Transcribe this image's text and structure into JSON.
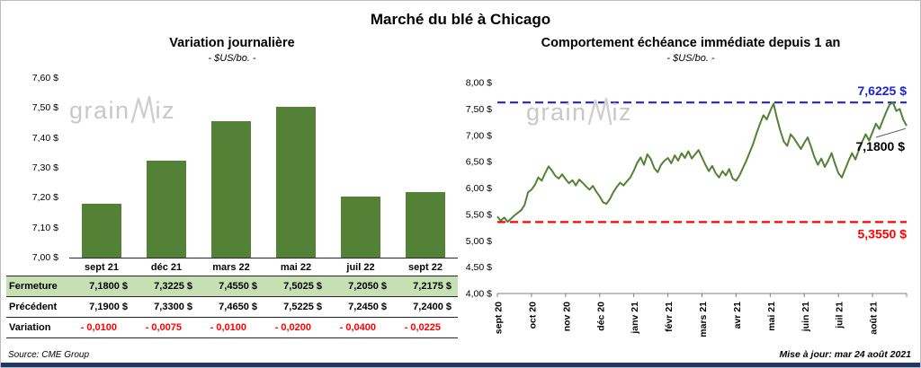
{
  "page": {
    "title": "Marché du blé à Chicago",
    "source_note": "Source: CME Group",
    "update_note": "Mise à jour: mar 24 août 2021"
  },
  "watermark": {
    "full": "grainwiz",
    "before_w": "grain",
    "after_w": "iz"
  },
  "colors": {
    "bar_green": "#538135",
    "line_green": "#538135",
    "fermeture_row_bg": "#C6E0B4",
    "negative_red": "#FF0000",
    "high_line_blue": "#2323CC",
    "low_line_red": "#FF0000",
    "bottom_bar_navy": "#1F3864"
  },
  "table": {
    "columns": [
      "sept 21",
      "déc 21",
      "mars 22",
      "mai 22",
      "juil 22",
      "sept 22"
    ],
    "rows": [
      {
        "label": "Fermeture",
        "values": [
          "7,1800 $",
          "7,3225 $",
          "7,4550 $",
          "7,5025 $",
          "7,2050 $",
          "7,2175 $"
        ]
      },
      {
        "label": "Précédent",
        "values": [
          "7,1900 $",
          "7,3300 $",
          "7,4650 $",
          "7,5225 $",
          "7,2450 $",
          "7,2400 $"
        ]
      },
      {
        "label": "Variation",
        "values": [
          "- 0,0100",
          "- 0,0075",
          "- 0,0100",
          "- 0,0200",
          "- 0,0400",
          "- 0,0225"
        ]
      }
    ]
  },
  "chart_data": [
    {
      "type": "bar",
      "title": "Variation journalière",
      "subtitle": "- $US/bo. -",
      "categories": [
        "sept 21",
        "déc 21",
        "mars 22",
        "mai 22",
        "juil 22",
        "sept 22"
      ],
      "values": [
        7.18,
        7.3225,
        7.455,
        7.5025,
        7.205,
        7.2175
      ],
      "ylim": [
        7.0,
        7.6
      ],
      "ytick_step": 0.1,
      "yticklabels": [
        "7,60 $",
        "7,50 $",
        "7,40 $",
        "7,30 $",
        "7,20 $",
        "7,10 $",
        "7,00 $"
      ],
      "grid": false,
      "bar_color": "#538135"
    },
    {
      "type": "line",
      "title": "Comportement échéance immédiate depuis 1 an",
      "subtitle": "- $US/bo. -",
      "x_labels": [
        "sept 20",
        "oct 20",
        "nov 20",
        "déc 20",
        "janv 21",
        "févr 21",
        "mars 21",
        "avr 21",
        "mai 21",
        "juin 21",
        "juil 21",
        "août 21"
      ],
      "values": [
        5.46,
        5.38,
        5.44,
        5.36,
        5.42,
        5.48,
        5.53,
        5.58,
        5.68,
        5.92,
        5.97,
        6.06,
        6.2,
        6.14,
        6.28,
        6.41,
        6.33,
        6.23,
        6.18,
        6.26,
        6.17,
        6.09,
        6.15,
        6.05,
        6.16,
        6.1,
        6.03,
        5.97,
        6.04,
        5.93,
        5.84,
        5.73,
        5.7,
        5.79,
        5.92,
        6.02,
        6.1,
        6.05,
        6.13,
        6.2,
        6.33,
        6.48,
        6.58,
        6.44,
        6.64,
        6.55,
        6.38,
        6.3,
        6.44,
        6.52,
        6.57,
        6.47,
        6.62,
        6.52,
        6.66,
        6.57,
        6.7,
        6.56,
        6.64,
        6.72,
        6.58,
        6.44,
        6.32,
        6.42,
        6.28,
        6.2,
        6.32,
        6.24,
        6.36,
        6.18,
        6.14,
        6.24,
        6.38,
        6.52,
        6.68,
        6.84,
        7.04,
        7.22,
        7.38,
        7.3,
        7.46,
        7.6,
        7.32,
        7.08,
        6.88,
        6.8,
        7.02,
        6.94,
        6.84,
        6.74,
        6.86,
        6.96,
        6.78,
        6.58,
        6.44,
        6.56,
        6.4,
        6.52,
        6.66,
        6.46,
        6.28,
        6.2,
        6.36,
        6.52,
        6.66,
        6.54,
        6.72,
        6.88,
        7.02,
        6.9,
        7.06,
        7.22,
        7.12,
        7.28,
        7.44,
        7.58,
        7.6225,
        7.46,
        7.5,
        7.3,
        7.18
      ],
      "ylim": [
        4.0,
        8.0
      ],
      "ytick_step": 0.5,
      "yticklabels": [
        "8,00 $",
        "7,50 $",
        "7,00 $",
        "6,50 $",
        "6,00 $",
        "5,50 $",
        "5,00 $",
        "4,50 $",
        "4,00 $"
      ],
      "line_color": "#538135",
      "high_line": {
        "value": 7.6225,
        "label": "7,6225 $",
        "color": "#2323CC"
      },
      "low_line": {
        "value": 5.355,
        "label": "5,3550 $",
        "color": "#FF0000"
      },
      "last_label": {
        "value": 7.18,
        "label": "7,1800 $"
      },
      "grid": false
    }
  ]
}
